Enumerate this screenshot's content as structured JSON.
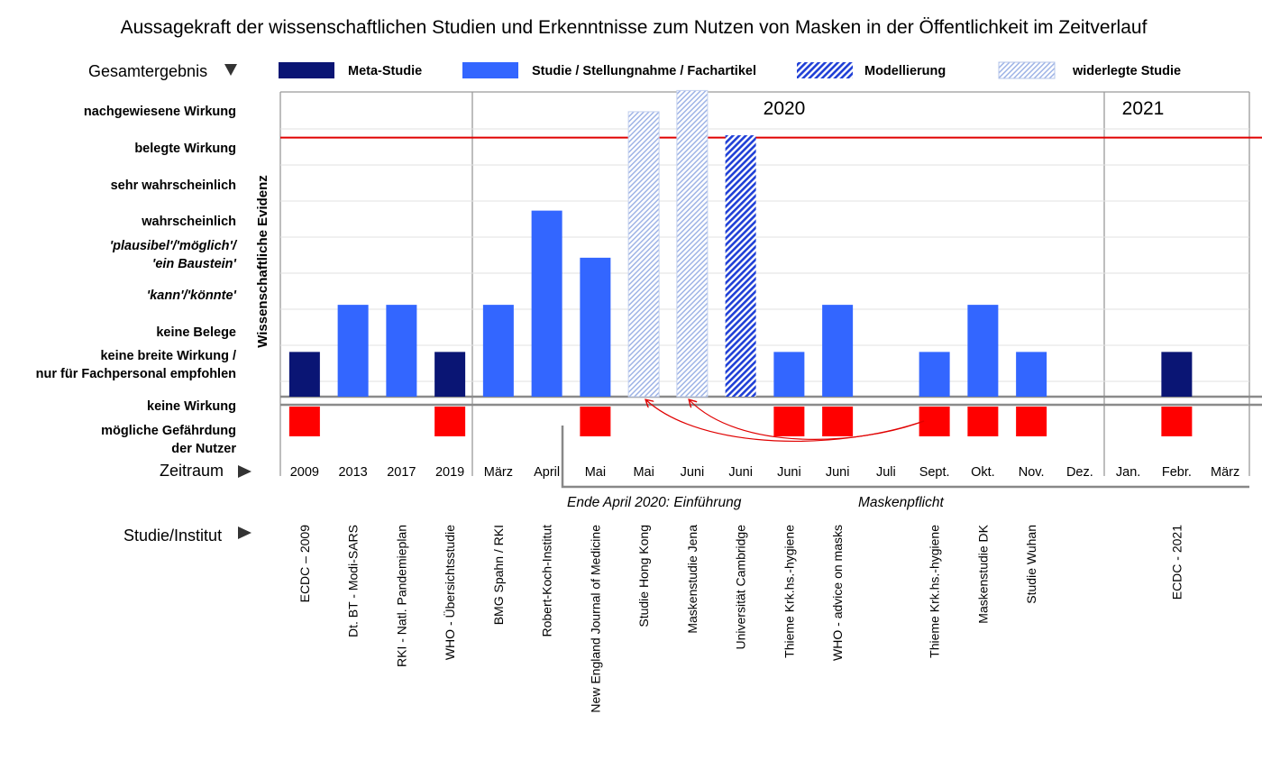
{
  "chart_data": {
    "type": "bar",
    "title": "Aussagekraft der wissenschaftlichen Studien und Erkenntnisse zum Nutzen von Masken in der Öffentlichkeit im Zeitverlauf",
    "ylabel": "Wissenschaftliche Evidenz",
    "row_labels": {
      "overall": "Gesamtergebnis",
      "period": "Zeitraum",
      "study": "Studie/Institut"
    },
    "legend": [
      {
        "key": "meta",
        "label": "Meta-Studie",
        "color": "#0a1574"
      },
      {
        "key": "study",
        "label": "Studie / Stellungnahme / Fachartikel",
        "color": "#3366ff"
      },
      {
        "key": "model",
        "label": "Modellierung",
        "color": "#1f3fd6"
      },
      {
        "key": "refuted",
        "label": "widerlegte Studie",
        "color": "#9fb4e6"
      }
    ],
    "levels": [
      {
        "label": "nachgewiesene Wirkung",
        "value": 6
      },
      {
        "label": "belegte Wirkung",
        "value": 5
      },
      {
        "label": "sehr wahrscheinlich",
        "value": 4
      },
      {
        "label": "wahrscheinlich",
        "value": 3
      },
      {
        "label": "'plausibel'/'möglich'/",
        "label2": "'ein Baustein'",
        "value": 2
      },
      {
        "label": "'kann'/'könnte'",
        "value": 1
      },
      {
        "label": "keine Belege",
        "value": 0
      },
      {
        "label": "keine breite Wirkung /",
        "label2": "nur für Fachpersonal empfohlen",
        "value": -1
      },
      {
        "label": "keine Wirkung",
        "value": -2
      },
      {
        "label": "mögliche Gefährdung",
        "label2": "der Nutzer",
        "value": -3
      }
    ],
    "ylim": [
      -1.95,
      4.5
    ],
    "threshold": 3.55,
    "years": [
      "2020",
      "2021"
    ],
    "categories": [
      "2009",
      "2013",
      "2017",
      "2019",
      "März",
      "April",
      "Mai",
      "Mai",
      "Juni",
      "Juni",
      "Juni",
      "Juni",
      "Juli",
      "Sept.",
      "Okt.",
      "Nov.",
      "Dez.",
      "Jan.",
      "Febr.",
      "März"
    ],
    "studies": [
      "ECDC – 2009",
      "Dt. BT - Modi-SARS",
      "RKI - Natl. Pandemieplan",
      "WHO - Übersichtsstudie",
      "BMG Spahn / RKI",
      "Robert-Koch-Institut",
      "New England Journal of Medicine",
      "Studie Hong Kong",
      "Maskenstudie Jena",
      "Universität Cambridge",
      "Thieme Krk.hs.-hygiene",
      "WHO - advice on masks",
      "",
      "Thieme Krk.hs.-hygiene",
      "Maskenstudie DK",
      "Studie Wuhan",
      "",
      "",
      "ECDC - 2021",
      ""
    ],
    "values": [
      -1,
      0,
      0,
      -1,
      0,
      2,
      1,
      4.1,
      4.55,
      3.6,
      -1,
      0,
      null,
      -1,
      0,
      -1,
      null,
      null,
      -1,
      null
    ],
    "kinds": [
      "meta",
      "study",
      "study",
      "meta",
      "study",
      "study",
      "study",
      "refuted",
      "refuted",
      "model",
      "study",
      "study",
      "",
      "study",
      "study",
      "study",
      "",
      "",
      "meta",
      ""
    ],
    "harm": [
      true,
      false,
      false,
      true,
      false,
      false,
      true,
      false,
      false,
      false,
      true,
      true,
      false,
      true,
      true,
      true,
      false,
      false,
      true,
      false
    ],
    "harm_color": "#ff0000",
    "mask_note": {
      "left": "Ende April 2020:  Einführung",
      "right": "Maskenpflicht"
    }
  }
}
